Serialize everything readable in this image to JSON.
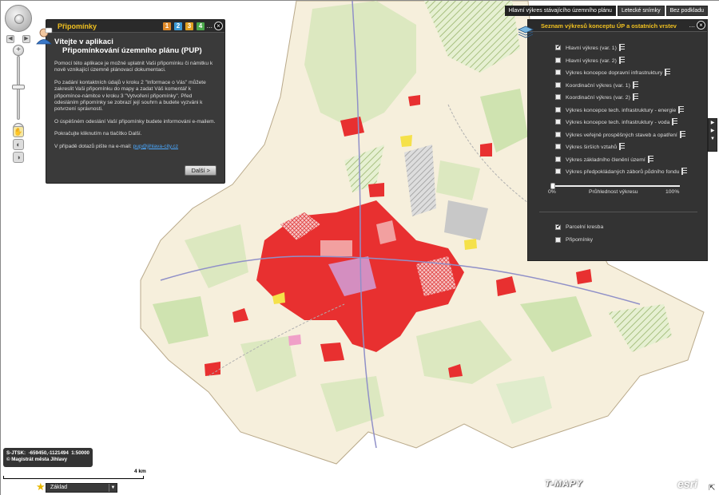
{
  "notes_panel": {
    "title": "Připomínky",
    "steps": [
      {
        "label": "1",
        "color": "#e08a2a"
      },
      {
        "label": "2",
        "color": "#3d9bd6"
      },
      {
        "label": "3",
        "color": "#e0a020"
      },
      {
        "label": "4",
        "color": "#4aa84a"
      }
    ],
    "menu": "...",
    "close": "×",
    "heading_line1": "Vítejte v aplikaci",
    "heading_line2": "Připomínkování územního plánu (PUP)",
    "p1": "Pomocí této aplikace je možné uplatnit Vaši připomínku či námitku k nově vznikající územně plánovací dokumentaci.",
    "p2": "Po zadání kontaktních údajů v kroku 2 \"Informace o Vás\" můžete zakreslit Vaši připomínku do mapy a zadat Váš komentář k připomínce-námitce v kroku 3 \"Vytvoření připomínky\". Před odesláním připomínky se zobrazí její souhrn a budete vyzváni k potvrzení správnosti.",
    "p3": "O úspěšném odeslání Vaší připomínky budete informováni e-mailem.",
    "p4": "Pokračujte kliknutím na tlačítko Další.",
    "p5_prefix": "V případě dotazů pište na e-mail: ",
    "email": "pup@jihlava-city.cz",
    "next_button": "Další >"
  },
  "top_tabs": [
    {
      "label": "Hlavní výkres stávajícího územního plánu",
      "active": true
    },
    {
      "label": "Letecké snímky",
      "active": false
    },
    {
      "label": "Bez podkladu",
      "active": false
    }
  ],
  "layers_panel": {
    "title": "Seznam výkresů konceptu ÚP a ostatních vrstev",
    "menu": "...",
    "close": "×",
    "layers": [
      {
        "label": "Hlavní výkres (var. 1)",
        "checked": true
      },
      {
        "label": "Hlavní výkres (var. 2)",
        "checked": false
      },
      {
        "label": "Výkres koncepce dopravní infrastruktury",
        "checked": false
      },
      {
        "label": "Koordinační výkres (var. 1)",
        "checked": false
      },
      {
        "label": "Koordinační výkres (var. 2)",
        "checked": false
      },
      {
        "label": "Výkres koncepce tech. infrastruktury - energie",
        "checked": false
      },
      {
        "label": "Výkres koncepce tech. infrastruktury - voda",
        "checked": false
      },
      {
        "label": "Výkres veřejně prospěšných staveb a opatření",
        "checked": false
      },
      {
        "label": "Výkres širších vztahů",
        "checked": false
      },
      {
        "label": "Výkres základního členění území",
        "checked": false
      },
      {
        "label": "Výkres předpokládaných záborů půdního fondu",
        "checked": false
      }
    ],
    "transparency_min": "0%",
    "transparency_label": "Průhlednost výkresu",
    "transparency_max": "100%",
    "transparency_value": 0,
    "extra_layers": [
      {
        "label": "Parcelní kresba",
        "checked": true
      },
      {
        "label": "Připomínky",
        "checked": false
      }
    ]
  },
  "status": {
    "crs": "S-JTSK:",
    "coords": "-659450,-1121494",
    "scale": "1:50000",
    "copyright": "© Magistrát města Jihlavy"
  },
  "scale_label": "4 km",
  "basemap": {
    "selected": "Základ"
  },
  "logos": {
    "tmapy": "T-MAPY",
    "esri": "esri"
  }
}
